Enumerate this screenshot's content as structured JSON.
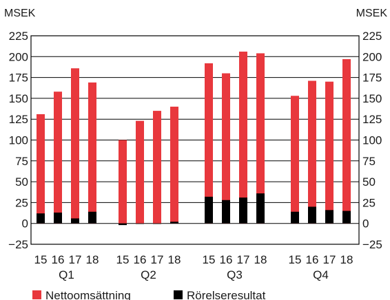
{
  "chart_data": {
    "type": "bar",
    "unit_left": "MSEK",
    "unit_right": "MSEK",
    "ylim": [
      -25,
      225
    ],
    "yticks": [
      -25,
      0,
      25,
      50,
      75,
      100,
      125,
      150,
      175,
      200,
      225
    ],
    "ytick_labels": [
      "−25",
      "0",
      "25",
      "50",
      "75",
      "100",
      "125",
      "150",
      "175",
      "200",
      "225"
    ],
    "grid": true,
    "legend_position": "bottom",
    "groups": [
      {
        "label": "Q1",
        "categories": [
          "15",
          "16",
          "17",
          "18"
        ]
      },
      {
        "label": "Q2",
        "categories": [
          "15",
          "16",
          "17",
          "18"
        ]
      },
      {
        "label": "Q3",
        "categories": [
          "15",
          "16",
          "17",
          "18"
        ]
      },
      {
        "label": "Q4",
        "categories": [
          "15",
          "16",
          "17",
          "18"
        ]
      }
    ],
    "series": [
      {
        "name": "Nettoomsättning",
        "color": "#e8383d",
        "values": [
          131,
          158,
          186,
          169,
          100,
          123,
          135,
          140,
          192,
          180,
          206,
          204,
          153,
          171,
          170,
          197
        ]
      },
      {
        "name": "Rörelseresultat",
        "color": "#000000",
        "values": [
          12,
          13,
          6,
          14,
          -2,
          0,
          0,
          2,
          32,
          28,
          31,
          36,
          14,
          20,
          16,
          15
        ]
      }
    ]
  }
}
